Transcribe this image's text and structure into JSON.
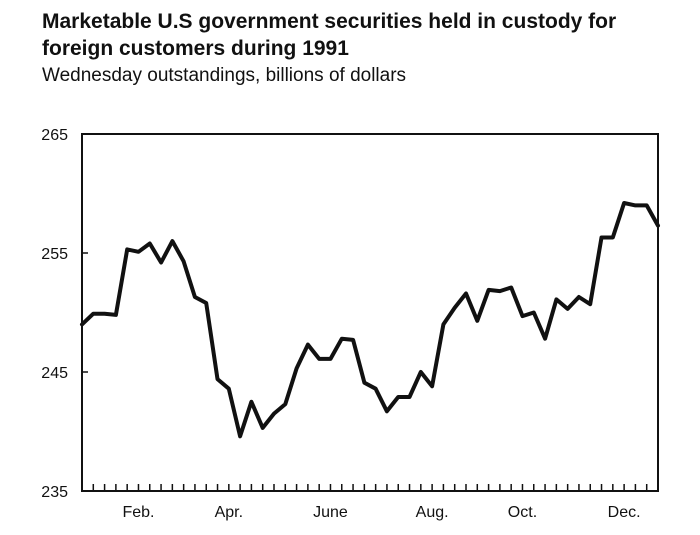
{
  "chart_data": {
    "type": "line",
    "title": "Marketable U.S government securities held in custody for foreign customers during 1991",
    "subtitle": "Wednesday outstandings, billions of dollars",
    "xlabel": "",
    "ylabel": "",
    "ylim": [
      235,
      265
    ],
    "yticks": [
      235,
      245,
      255,
      265
    ],
    "xticks": [
      {
        "label": "Feb.",
        "week": 5
      },
      {
        "label": "Apr.",
        "week": 13
      },
      {
        "label": "June",
        "week": 22
      },
      {
        "label": "Aug.",
        "week": 31
      },
      {
        "label": "Oct.",
        "week": 39
      },
      {
        "label": "Dec.",
        "week": 48
      }
    ],
    "x_min": 0,
    "x_max": 51,
    "grid": false,
    "series": [
      {
        "values": [
          249.0,
          249.9,
          249.9,
          249.8,
          255.3,
          255.1,
          255.8,
          254.2,
          256.0,
          254.3,
          251.3,
          250.8,
          244.4,
          243.6,
          239.6,
          242.5,
          240.3,
          241.5,
          242.3,
          245.3,
          247.3,
          246.1,
          246.1,
          247.8,
          247.7,
          244.1,
          243.6,
          241.7,
          242.9,
          242.9,
          245.0,
          243.8,
          249.0,
          250.4,
          251.6,
          249.3,
          251.9,
          251.8,
          252.1,
          249.7,
          250.0,
          247.8,
          251.1,
          250.3,
          251.3,
          250.7,
          256.3,
          256.3,
          259.2,
          259.0,
          259.0,
          257.3
        ]
      }
    ]
  }
}
